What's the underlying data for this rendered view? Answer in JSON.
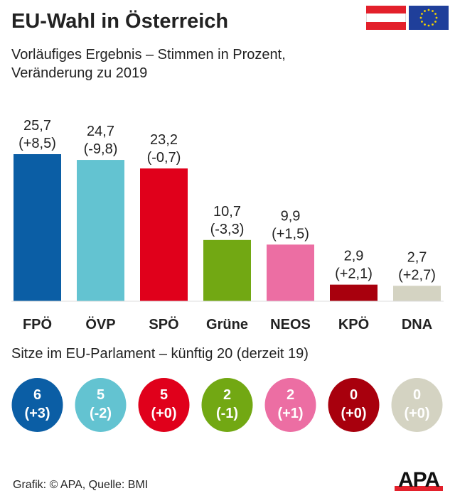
{
  "header": {
    "title": "EU-Wahl in Österreich",
    "subtitle_line1": "Vorläufiges Ergebnis – Stimmen in Prozent,",
    "subtitle_line2": "Veränderung zu 2019"
  },
  "chart_data": {
    "type": "bar",
    "categories": [
      "FPÖ",
      "ÖVP",
      "SPÖ",
      "Grüne",
      "NEOS",
      "KPÖ",
      "DNA"
    ],
    "values": [
      25.7,
      24.7,
      23.2,
      10.7,
      9.9,
      2.9,
      2.7
    ],
    "value_labels": [
      "25,7",
      "24,7",
      "23,2",
      "10,7",
      "9,9",
      "2,9",
      "2,7"
    ],
    "change_labels": [
      "(+8,5)",
      "(-9,8)",
      "(-0,7)",
      "(-3,3)",
      "(+1,5)",
      "(+2,1)",
      "(+2,7)"
    ],
    "colors": [
      "#0b5ea5",
      "#63c3d1",
      "#e0001b",
      "#72a813",
      "#ec6ea3",
      "#a8000d",
      "#d4d3c2"
    ],
    "ylim": [
      0,
      26
    ]
  },
  "seats": {
    "title": "Sitze im EU-Parlament – künftig 20 (derzeit 19)",
    "values": [
      "6",
      "5",
      "5",
      "2",
      "2",
      "0",
      "0"
    ],
    "changes": [
      "(+3)",
      "(-2)",
      "(+0)",
      "(-1)",
      "(+1)",
      "(+0)",
      "(+0)"
    ]
  },
  "footer": {
    "source": "Grafik: © APA, Quelle: BMI",
    "logo": "APA"
  },
  "icons": [
    "austria-flag-icon",
    "eu-flag-icon",
    "apa-logo"
  ]
}
